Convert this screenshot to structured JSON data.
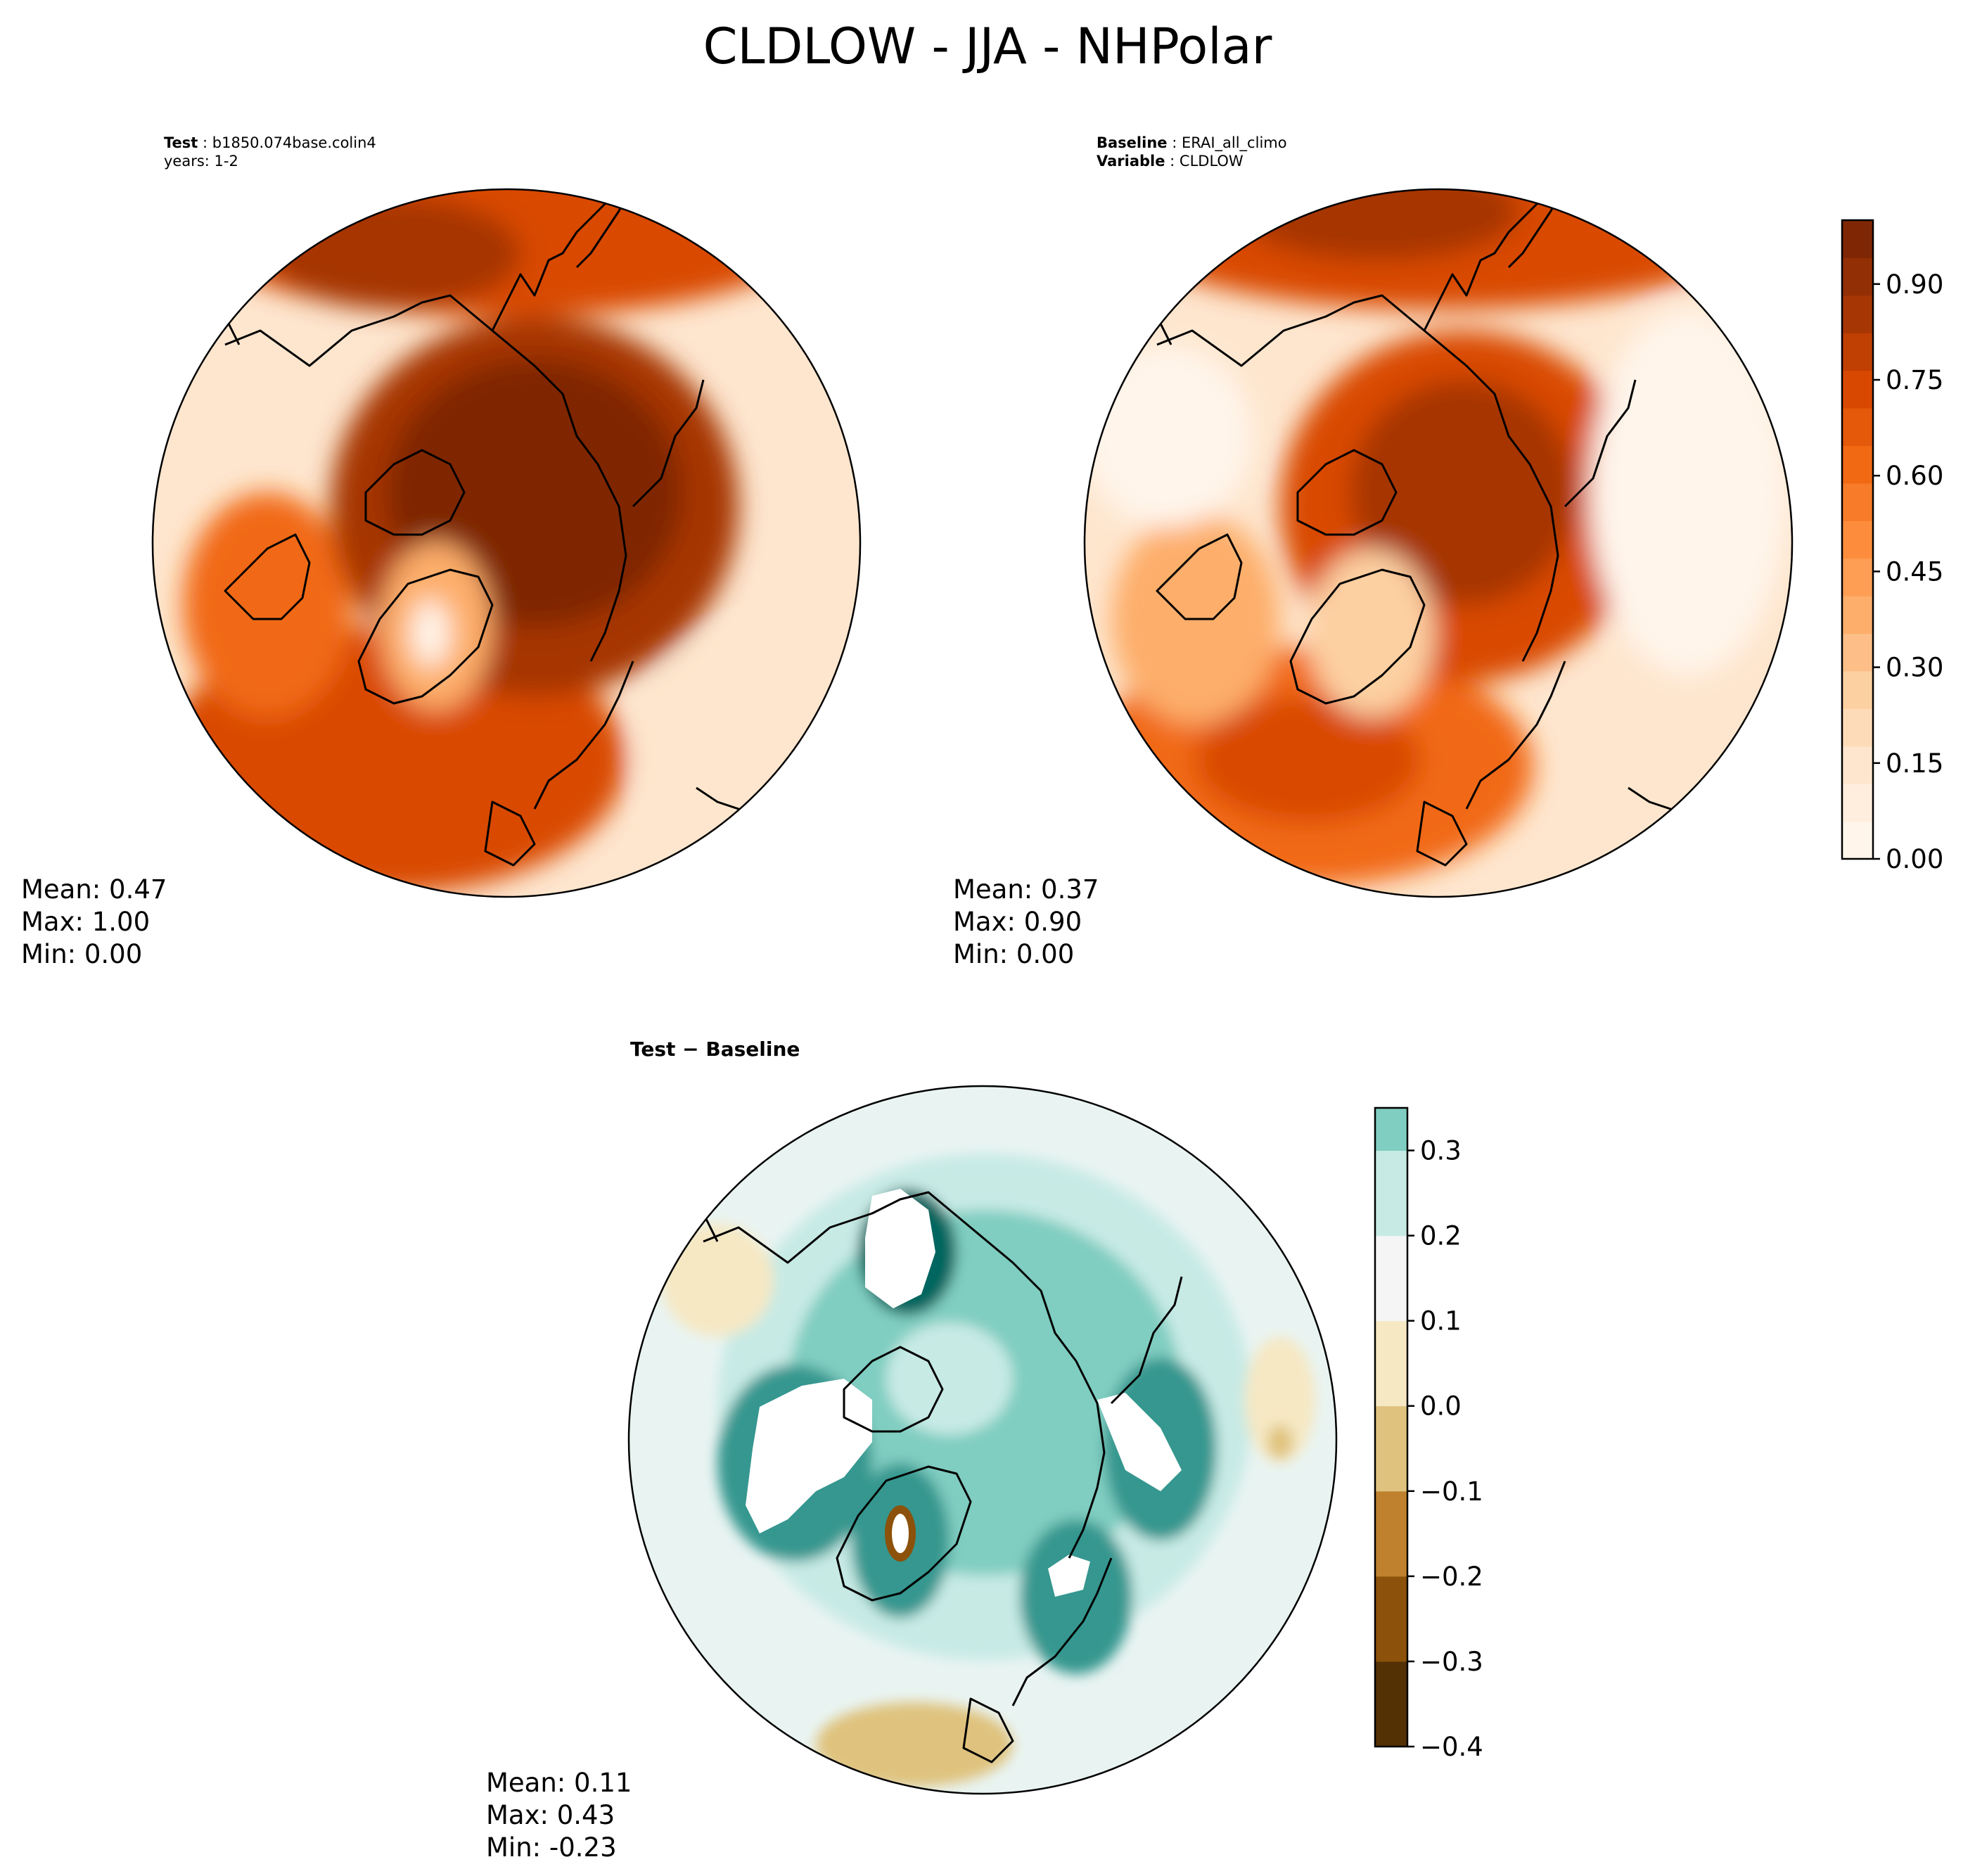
{
  "title": "CLDLOW - JJA - NHPolar",
  "test_header": {
    "label_bold": "Test",
    "label_value": "b1850.074base.colin4",
    "line2": "years: 1-2"
  },
  "baseline_header": {
    "label_bold": "Baseline",
    "label_value": "ERAI_all_climo",
    "var_bold": "Variable",
    "var_value": "CLDLOW"
  },
  "diff_header": {
    "title": "Test − Baseline"
  },
  "colors": {
    "oranges": [
      "#fff5eb",
      "#fee6ce",
      "#fdd0a2",
      "#fdae6b",
      "#fd8d3c",
      "#f16913",
      "#d94801",
      "#a63603",
      "#7f2704"
    ],
    "brbg": [
      "#543005",
      "#8c510a",
      "#bf812d",
      "#dfc27d",
      "#f6e8c3",
      "#f5f5f5",
      "#c7eae5",
      "#80cdc1",
      "#35978f",
      "#01665e",
      "#003c30"
    ],
    "map_line": "#000000"
  },
  "chart_data": [
    {
      "type": "heatmap",
      "projection": "north-polar-stereographic",
      "panel": "test",
      "colormap": "oranges",
      "stats": {
        "mean": "Mean:  0.47",
        "max": "Max:  1.00",
        "min": "Min:  0.00"
      },
      "zlim": [
        0,
        1.0
      ]
    },
    {
      "type": "heatmap",
      "projection": "north-polar-stereographic",
      "panel": "baseline",
      "colormap": "oranges",
      "stats": {
        "mean": "Mean:  0.37",
        "max": "Max:  0.90",
        "min": "Min:  0.00"
      },
      "zlim": [
        0,
        1.0
      ],
      "colorbar": {
        "ticks": [
          0.0,
          0.15,
          0.3,
          0.45,
          0.6,
          0.75,
          0.9
        ],
        "tick_labels": [
          "0.00",
          "0.15",
          "0.30",
          "0.45",
          "0.60",
          "0.75",
          "0.90"
        ],
        "range": [
          0,
          1.0
        ]
      }
    },
    {
      "type": "heatmap",
      "projection": "north-polar-stereographic",
      "panel": "difference",
      "colormap": "brbg",
      "stats": {
        "mean": "Mean:  0.11",
        "max": "Max:  0.43",
        "min": "Min: -0.23"
      },
      "zlim": [
        -0.4,
        0.35
      ],
      "colorbar": {
        "ticks": [
          -0.4,
          -0.3,
          -0.2,
          -0.1,
          0.0,
          0.1,
          0.2,
          0.3
        ],
        "tick_labels": [
          "−0.4",
          "−0.3",
          "−0.2",
          "−0.1",
          "0.0",
          "0.1",
          "0.2",
          "0.3"
        ],
        "range": [
          -0.4,
          0.35
        ]
      }
    }
  ]
}
